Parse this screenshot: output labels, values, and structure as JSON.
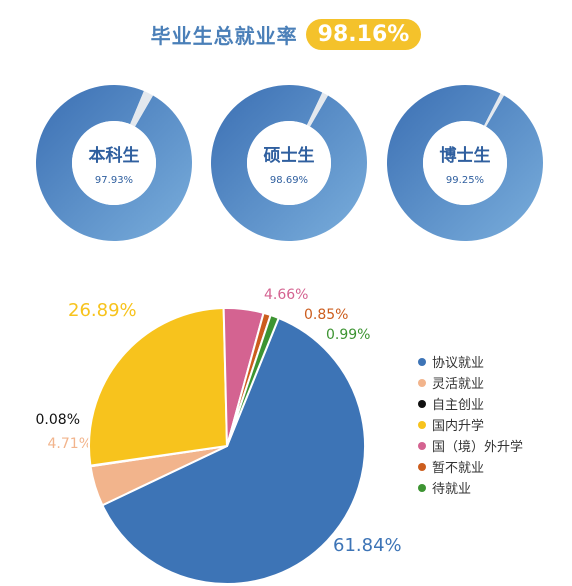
{
  "header": {
    "title": "毕业生总就业率",
    "rate": "98.16%"
  },
  "colors": {
    "donut_dark": "#3b6fb3",
    "donut_light": "#7aaedc",
    "donut_gap": "#e3e8ee",
    "donut_text": "#2f5f9f"
  },
  "chart_data": [
    {
      "type": "pie",
      "subtype": "donut",
      "title": "本科生",
      "values": [
        {
          "label": "就业",
          "value": 97.93,
          "display": "97.93%"
        }
      ]
    },
    {
      "type": "pie",
      "subtype": "donut",
      "title": "硕士生",
      "values": [
        {
          "label": "就业",
          "value": 98.69,
          "display": "98.69%"
        }
      ]
    },
    {
      "type": "pie",
      "subtype": "donut",
      "title": "博士生",
      "values": [
        {
          "label": "就业",
          "value": 99.25,
          "display": "99.25%"
        }
      ]
    },
    {
      "type": "pie",
      "legend": "right",
      "slices": [
        {
          "name": "协议就业",
          "value": 61.84,
          "label": "61.84%",
          "color": "#3d74b6"
        },
        {
          "name": "灵活就业",
          "value": 4.71,
          "label": "4.71%",
          "color": "#f2b48c"
        },
        {
          "name": "自主创业",
          "value": 0.08,
          "label": "0.08%",
          "color": "#111111"
        },
        {
          "name": "国内升学",
          "value": 26.89,
          "label": "26.89%",
          "color": "#f7c31d"
        },
        {
          "name": "国（境）外升学",
          "value": 4.66,
          "label": "4.66%",
          "color": "#d46391"
        },
        {
          "name": "暂不就业",
          "value": 0.85,
          "label": "0.85%",
          "color": "#cc5d1e"
        },
        {
          "name": "待就业",
          "value": 0.99,
          "label": "0.99%",
          "color": "#3d9432"
        }
      ]
    }
  ]
}
